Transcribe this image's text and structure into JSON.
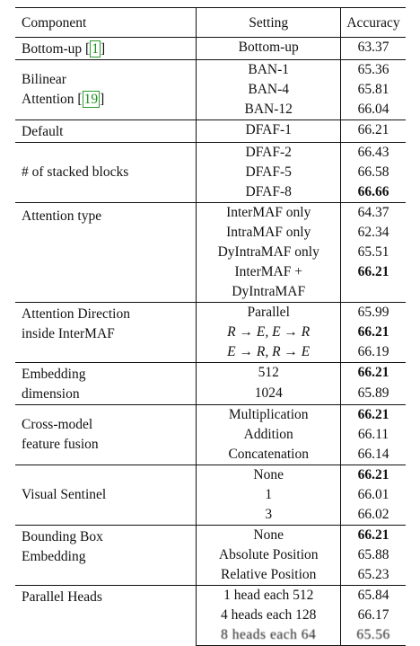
{
  "header": {
    "component": "Component",
    "setting": "Setting",
    "accuracy": "Accuracy"
  },
  "rows": {
    "bottomup": {
      "component": "Bottom-up [",
      "cite": "1",
      "component_end": "]",
      "setting": "Bottom-up",
      "accuracy": "63.37"
    },
    "ban": {
      "component_line1": "Bilinear",
      "component_line2": "Attention [",
      "cite": "19",
      "component_end": "]",
      "items": [
        {
          "setting": "BAN-1",
          "accuracy": "65.36"
        },
        {
          "setting": "BAN-4",
          "accuracy": "65.81"
        },
        {
          "setting": "BAN-12",
          "accuracy": "66.04"
        }
      ]
    },
    "default": {
      "component": "Default",
      "setting": "DFAF-1",
      "accuracy": "66.21"
    },
    "stacked": {
      "component": "# of stacked blocks",
      "items": [
        {
          "setting": "DFAF-2",
          "accuracy": "66.43"
        },
        {
          "setting": "DFAF-5",
          "accuracy": "66.58"
        },
        {
          "setting": "DFAF-8",
          "accuracy": "66.66"
        }
      ]
    },
    "attention_type": {
      "component": "Attention type",
      "items": [
        {
          "setting": "InterMAF only",
          "accuracy": "64.37"
        },
        {
          "setting": "IntraMAF only",
          "accuracy": "62.34"
        },
        {
          "setting": "DyIntraMAF only",
          "accuracy": "65.51"
        },
        {
          "setting": "InterMAF +",
          "setting2": "DyIntraMAF",
          "accuracy": "66.21"
        }
      ]
    },
    "attention_direction": {
      "component_line1": "Attention Direction",
      "component_line2": "inside InterMAF",
      "items": [
        {
          "setting": "Parallel",
          "accuracy": "65.99"
        },
        {
          "setting": "R → E, E → R",
          "accuracy": "66.21"
        },
        {
          "setting": "E → R, R → E",
          "accuracy": "66.19"
        }
      ]
    },
    "embedding": {
      "component_line1": "Embedding",
      "component_line2": "dimension",
      "items": [
        {
          "setting": "512",
          "accuracy": "66.21"
        },
        {
          "setting": "1024",
          "accuracy": "65.89"
        }
      ]
    },
    "fusion": {
      "component_line1": "Cross-model",
      "component_line2": "feature fusion",
      "items": [
        {
          "setting": "Multiplication",
          "accuracy": "66.21"
        },
        {
          "setting": "Addition",
          "accuracy": "66.11"
        },
        {
          "setting": "Concatenation",
          "accuracy": "66.14"
        }
      ]
    },
    "sentinel": {
      "component": "Visual Sentinel",
      "items": [
        {
          "setting": "None",
          "accuracy": "66.21"
        },
        {
          "setting": "1",
          "accuracy": "66.01"
        },
        {
          "setting": "3",
          "accuracy": "66.02"
        }
      ]
    },
    "bbox": {
      "component_line1": "Bounding Box",
      "component_line2": "Embedding",
      "items": [
        {
          "setting": "None",
          "accuracy": "66.21"
        },
        {
          "setting": "Absolute Position",
          "accuracy": "65.88"
        },
        {
          "setting": "Relative Position",
          "accuracy": "65.23"
        }
      ]
    },
    "heads": {
      "component": "Parallel Heads",
      "items": [
        {
          "setting": "1 head each 512",
          "accuracy": "65.84"
        },
        {
          "setting": "4 heads each 128",
          "accuracy": "66.17"
        },
        {
          "setting": "8 heads each 64",
          "accuracy": "65.56"
        }
      ]
    }
  }
}
